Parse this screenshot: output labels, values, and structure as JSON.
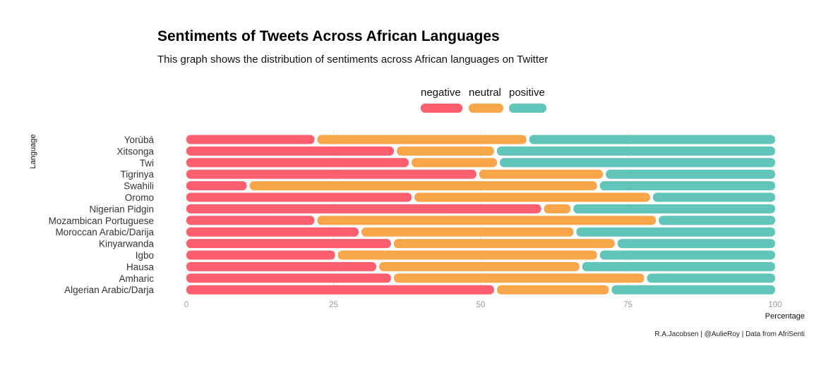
{
  "chart_data": {
    "type": "bar",
    "orientation": "horizontal",
    "stacked": true,
    "title": "Sentiments of Tweets Across African Languages",
    "subtitle": "This graph shows the distribution of sentiments across African languages on Twitter",
    "xlabel": "Percentage",
    "ylabel": "Language",
    "caption": "R.A.Jacobsen | @AulieRoy | Data from AfriSenti",
    "xlim": [
      0,
      100
    ],
    "xticks": [
      0,
      25,
      50,
      75,
      100
    ],
    "legend_position": "top",
    "grid": true,
    "categories": [
      "Yorùbá",
      "Xitsonga",
      "Twi",
      "Tigrinya",
      "Swahili",
      "Oromo",
      "Nigerian Pidgin",
      "Mozambican Portuguese",
      "Moroccan Arabic/Darija",
      "Kinyarwanda",
      "Igbo",
      "Hausa",
      "Amharic",
      "Algerian Arabic/Darja"
    ],
    "series": [
      {
        "name": "negative",
        "color": "#fe5f6e",
        "values": [
          22,
          35.5,
          38,
          49.5,
          10.5,
          38.5,
          60.5,
          22,
          29.5,
          35,
          25.5,
          32.5,
          35,
          52.5
        ]
      },
      {
        "name": "neutral",
        "color": "#f7a64a",
        "values": [
          36,
          17,
          15,
          21.5,
          59.5,
          40.5,
          5,
          58,
          36.5,
          38,
          44.5,
          34.5,
          43,
          19.5
        ]
      },
      {
        "name": "positive",
        "color": "#62c5b9",
        "values": [
          42,
          47.5,
          47,
          29,
          30,
          21,
          34.5,
          20,
          34,
          27,
          30,
          33,
          22,
          28
        ]
      }
    ]
  }
}
